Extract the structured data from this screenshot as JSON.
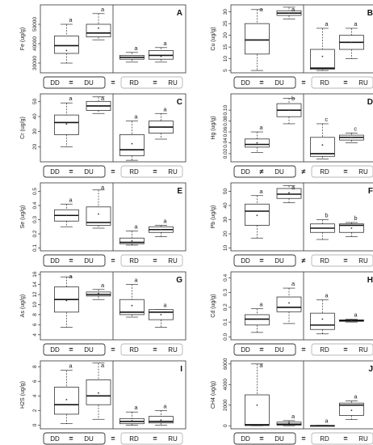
{
  "chart_data": [
    {
      "type": "boxplot",
      "panel": "A",
      "ylabel": "Fe (ug/g)",
      "ylim": [
        25000,
        60000
      ],
      "yticks": [
        30000,
        40000,
        50000
      ],
      "ytick_labels": [
        "30000",
        "40000",
        "50000"
      ],
      "categories": [
        "DD",
        "DU",
        "RD",
        "RU"
      ],
      "boxes": [
        {
          "whislo": 30000,
          "q1": 35000,
          "med": 39000,
          "q3": 44000,
          "whishi": 50000,
          "mean": 36500
        },
        {
          "whislo": 42000,
          "q1": 43500,
          "med": 45500,
          "q3": 50000,
          "whishi": 55500,
          "mean": 48000
        },
        {
          "whislo": 30500,
          "q1": 32000,
          "med": 33000,
          "q3": 34000,
          "whishi": 35500,
          "mean": 33000
        },
        {
          "whislo": 30500,
          "q1": 32000,
          "med": 34000,
          "q3": 36500,
          "whishi": 38000,
          "mean": 33500
        }
      ],
      "letters": [
        "a",
        "a",
        "a",
        "a"
      ],
      "comparison": [
        "DD",
        "=",
        "DU",
        "=",
        "RD",
        "=",
        "RU"
      ]
    },
    {
      "type": "boxplot",
      "panel": "B",
      "ylabel": "Cu (ug/g)",
      "ylim": [
        4,
        33
      ],
      "yticks": [
        5,
        10,
        15,
        20,
        25,
        30
      ],
      "ytick_labels": [
        "5",
        "10",
        "15",
        "20",
        "25",
        "30"
      ],
      "categories": [
        "DD",
        "DU",
        "RD",
        "RU"
      ],
      "boxes": [
        {
          "whislo": 5,
          "q1": 12,
          "med": 18,
          "q3": 25,
          "whishi": 31,
          "mean": 18
        },
        {
          "whislo": 27,
          "q1": 28.5,
          "med": 29.5,
          "q3": 30.5,
          "whishi": 32,
          "mean": 29.5
        },
        {
          "whislo": 5,
          "q1": 5.5,
          "med": 6,
          "q3": 14,
          "whishi": 23,
          "mean": 11
        },
        {
          "whislo": 10,
          "q1": 14,
          "med": 17,
          "q3": 20,
          "whishi": 23,
          "mean": 17
        }
      ],
      "letters": [
        "a",
        "a",
        "a",
        "a"
      ],
      "comparison": [
        "DD",
        "=",
        "DU",
        "=",
        "RD",
        "=",
        "RU"
      ]
    },
    {
      "type": "boxplot",
      "panel": "C",
      "ylabel": "Cr (ug/g)",
      "ylim": [
        10,
        55
      ],
      "yticks": [
        20,
        30,
        40,
        50
      ],
      "ytick_labels": [
        "20",
        "30",
        "40",
        "50"
      ],
      "categories": [
        "DD",
        "DU",
        "RD",
        "RU"
      ],
      "boxes": [
        {
          "whislo": 20,
          "q1": 28,
          "med": 36,
          "q3": 41,
          "whishi": 49,
          "mean": 35
        },
        {
          "whislo": 42,
          "q1": 44,
          "med": 47,
          "q3": 50,
          "whishi": 53,
          "mean": 47
        },
        {
          "whislo": 11,
          "q1": 14,
          "med": 18,
          "q3": 28,
          "whishi": 37,
          "mean": 22
        },
        {
          "whislo": 25,
          "q1": 29,
          "med": 33,
          "q3": 37,
          "whishi": 42,
          "mean": 33
        }
      ],
      "letters": [
        "a",
        "a",
        "a",
        "a"
      ],
      "comparison": [
        "DD",
        "=",
        "DU",
        "=",
        "RD",
        "=",
        "RU"
      ]
    },
    {
      "type": "boxplot",
      "panel": "D",
      "ylabel": "Hg (ug/g)",
      "ylim": [
        0.005,
        0.13
      ],
      "yticks": [
        0.02,
        0.04,
        0.06,
        0.08,
        0.1
      ],
      "ytick_labels": [
        "0.02",
        "0.04",
        "0.06",
        "0.08",
        "0.10"
      ],
      "categories": [
        "DD",
        "DU",
        "RD",
        "RU"
      ],
      "boxes": [
        {
          "whislo": 0.022,
          "q1": 0.032,
          "med": 0.037,
          "q3": 0.047,
          "whishi": 0.06,
          "mean": 0.04
        },
        {
          "whislo": 0.075,
          "q1": 0.088,
          "med": 0.1,
          "q3": 0.112,
          "whishi": 0.122,
          "mean": 0.1
        },
        {
          "whislo": 0.01,
          "q1": 0.015,
          "med": 0.02,
          "q3": 0.05,
          "whishi": 0.075,
          "mean": 0.036
        },
        {
          "whislo": 0.04,
          "q1": 0.045,
          "med": 0.05,
          "q3": 0.054,
          "whishi": 0.058,
          "mean": 0.05
        }
      ],
      "letters": [
        "a",
        "b",
        "c",
        "c"
      ],
      "comparison": [
        "DD",
        "≠",
        "DU",
        "≠",
        "RD",
        "=",
        "RU"
      ]
    },
    {
      "type": "boxplot",
      "panel": "E",
      "ylabel": "Se (ug/g)",
      "ylim": [
        0.08,
        0.56
      ],
      "yticks": [
        0.1,
        0.2,
        0.3,
        0.4,
        0.5
      ],
      "ytick_labels": [
        "0.1",
        "0.2",
        "0.3",
        "0.4",
        "0.5"
      ],
      "categories": [
        "DD",
        "DU",
        "RD",
        "RU"
      ],
      "boxes": [
        {
          "whislo": 0.25,
          "q1": 0.29,
          "med": 0.33,
          "q3": 0.37,
          "whishi": 0.41,
          "mean": 0.33
        },
        {
          "whislo": 0.24,
          "q1": 0.26,
          "med": 0.28,
          "q3": 0.39,
          "whishi": 0.51,
          "mean": 0.34
        },
        {
          "whislo": 0.12,
          "q1": 0.13,
          "med": 0.14,
          "q3": 0.17,
          "whishi": 0.22,
          "mean": 0.15
        },
        {
          "whislo": 0.18,
          "q1": 0.21,
          "med": 0.23,
          "q3": 0.25,
          "whishi": 0.26,
          "mean": 0.23
        }
      ],
      "letters": [
        "a",
        "a",
        "a",
        "a"
      ],
      "comparison": [
        "DD",
        "=",
        "DU",
        "=",
        "RD",
        "=",
        "RU"
      ]
    },
    {
      "type": "boxplot",
      "panel": "F",
      "ylabel": "Pb (ug/g)",
      "ylim": [
        8,
        56
      ],
      "yticks": [
        10,
        20,
        30,
        40,
        50
      ],
      "ytick_labels": [
        "10",
        "20",
        "30",
        "40",
        "50"
      ],
      "categories": [
        "DD",
        "DU",
        "RD",
        "RU"
      ],
      "boxes": [
        {
          "whislo": 17,
          "q1": 26,
          "med": 36,
          "q3": 41,
          "whishi": 47,
          "mean": 33
        },
        {
          "whislo": 42,
          "q1": 45,
          "med": 48,
          "q3": 52,
          "whishi": 54,
          "mean": 49
        },
        {
          "whislo": 16,
          "q1": 21,
          "med": 24,
          "q3": 27,
          "whishi": 30,
          "mean": 24
        },
        {
          "whislo": 18,
          "q1": 21,
          "med": 26,
          "q3": 27,
          "whishi": 28,
          "mean": 24
        }
      ],
      "letters": [
        "a",
        "a",
        "b",
        "b"
      ],
      "comparison": [
        "DD",
        "=",
        "DU",
        "≠",
        "RD",
        "=",
        "RU"
      ]
    },
    {
      "type": "boxplot",
      "panel": "G",
      "ylabel": "As (ug/g)",
      "ylim": [
        3,
        16.5
      ],
      "yticks": [
        4,
        6,
        8,
        10,
        12,
        14,
        16
      ],
      "ytick_labels": [
        "4",
        "6",
        "8",
        "10",
        "12",
        "14",
        "16"
      ],
      "categories": [
        "DD",
        "DU",
        "RD",
        "RU"
      ],
      "boxes": [
        {
          "whislo": 5.5,
          "q1": 8.5,
          "med": 11,
          "q3": 13.5,
          "whishi": 15.5,
          "mean": 10.8
        },
        {
          "whislo": 11,
          "q1": 11.7,
          "med": 12,
          "q3": 12.5,
          "whishi": 13,
          "mean": 12.2
        },
        {
          "whislo": 7.5,
          "q1": 8,
          "med": 8.5,
          "q3": 11,
          "whishi": 14,
          "mean": 9.8
        },
        {
          "whislo": 5.5,
          "q1": 7,
          "med": 8.5,
          "q3": 9,
          "whishi": 9,
          "mean": 8
        }
      ],
      "letters": [
        "a",
        "a",
        "a",
        "a"
      ],
      "comparison": [
        "DD",
        "=",
        "DU",
        "=",
        "RD",
        "=",
        "RU"
      ]
    },
    {
      "type": "boxplot",
      "panel": "H",
      "ylabel": "Cd (ug/g)",
      "ylim": [
        -0.02,
        0.44
      ],
      "yticks": [
        0,
        0.1,
        0.2,
        0.3,
        0.4
      ],
      "ytick_labels": [
        "0.0",
        "0.1",
        "0.2",
        "0.3",
        "0.4"
      ],
      "categories": [
        "DD",
        "DU",
        "RD",
        "RU"
      ],
      "boxes": [
        {
          "whislo": 0.03,
          "q1": 0.08,
          "med": 0.12,
          "q3": 0.15,
          "whishi": 0.19,
          "mean": 0.12
        },
        {
          "whislo": 0.09,
          "q1": 0.17,
          "med": 0.2,
          "q3": 0.27,
          "whishi": 0.33,
          "mean": 0.23
        },
        {
          "whislo": 0.02,
          "q1": 0.05,
          "med": 0.08,
          "q3": 0.16,
          "whishi": 0.25,
          "mean": 0.12
        },
        {
          "whislo": 0.1,
          "q1": 0.105,
          "med": 0.11,
          "q3": 0.115,
          "whishi": 0.12,
          "mean": 0.11
        }
      ],
      "letters": [
        "a",
        "a",
        "a",
        "a"
      ],
      "comparison": [
        "DD",
        "=",
        "DU",
        "=",
        "RD",
        "=",
        "RU"
      ]
    },
    {
      "type": "boxplot",
      "panel": "I",
      "ylabel": "H2S (ug/g)",
      "ylim": [
        -0.5,
        8.8
      ],
      "yticks": [
        0,
        2,
        4,
        6,
        8
      ],
      "ytick_labels": [
        "0",
        "2",
        "4",
        "6",
        "8"
      ],
      "categories": [
        "DD",
        "DU",
        "RD",
        "RU"
      ],
      "boxes": [
        {
          "whislo": 0.2,
          "q1": 1.5,
          "med": 2.8,
          "q3": 5.2,
          "whishi": 7.5,
          "mean": 3.5
        },
        {
          "whislo": 0.8,
          "q1": 2.8,
          "med": 4,
          "q3": 6.2,
          "whishi": 8.5,
          "mean": 4.4
        },
        {
          "whislo": 0,
          "q1": 0.2,
          "med": 0.5,
          "q3": 0.9,
          "whishi": 1.8,
          "mean": 0.6
        },
        {
          "whislo": 0,
          "q1": 0.3,
          "med": 0.5,
          "q3": 1.2,
          "whishi": 2,
          "mean": 0.7
        }
      ],
      "letters": [
        "a",
        "a",
        "a",
        "a"
      ],
      "comparison": [
        "DD",
        "=",
        "DU",
        "=",
        "RD",
        "=",
        "RU"
      ]
    },
    {
      "type": "boxplot",
      "panel": "J",
      "ylabel": "CH4 (ug/g)",
      "ylim": [
        -300,
        6300
      ],
      "yticks": [
        0,
        2000,
        4000,
        6000
      ],
      "ytick_labels": [
        "0",
        "2000",
        "4000",
        "6000"
      ],
      "categories": [
        "DD",
        "DU",
        "RD",
        "RU"
      ],
      "boxes": [
        {
          "whislo": 0,
          "q1": 20,
          "med": 100,
          "q3": 3000,
          "whishi": 6000,
          "mean": 2000
        },
        {
          "whislo": 0,
          "q1": 50,
          "med": 150,
          "q3": 350,
          "whishi": 500,
          "mean": 250
        },
        {
          "whislo": 0,
          "q1": 0,
          "med": 5,
          "q3": 20,
          "whishi": 40,
          "mean": 10
        },
        {
          "whislo": 600,
          "q1": 1000,
          "med": 2000,
          "q3": 2200,
          "whishi": 2400,
          "mean": 1500
        }
      ],
      "letters": [
        "a",
        "a",
        "a",
        "a"
      ],
      "comparison": [
        "DD",
        "=",
        "DU",
        "=",
        "RD",
        "=",
        "RU"
      ]
    }
  ]
}
